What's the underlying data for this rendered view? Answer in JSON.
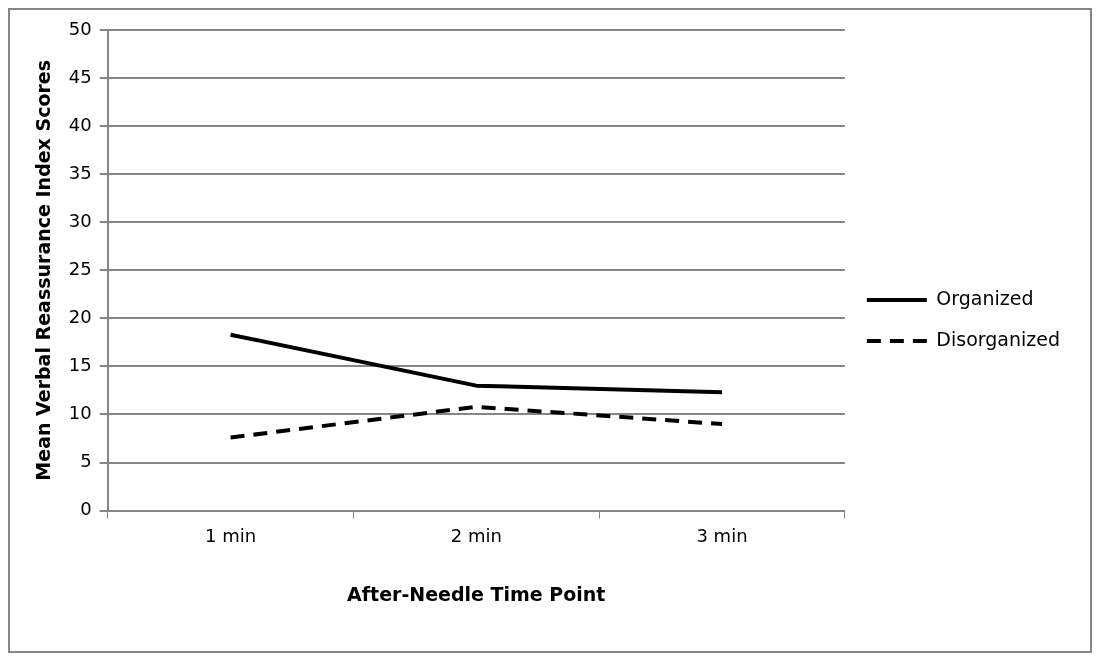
{
  "chart_data": {
    "type": "line",
    "xlabel": "After-Needle Time Point",
    "ylabel": "Mean Verbal Reassurance Index Scores",
    "categories": [
      "1 min",
      "2 min",
      "3 min"
    ],
    "series": [
      {
        "name": "Organized",
        "color": "#000000",
        "values": [
          18.3,
          13.0,
          12.3
        ],
        "line_style": "solid"
      },
      {
        "name": "Disorganized",
        "color": "#000000",
        "values": [
          7.6,
          10.8,
          9.0
        ],
        "line_style": "dashed"
      }
    ],
    "ylim": [
      0,
      50
    ],
    "yticks": [
      0,
      5,
      10,
      15,
      20,
      25,
      30,
      35,
      40,
      45,
      50
    ],
    "grid": "y",
    "legend": "right",
    "marker": "none"
  }
}
